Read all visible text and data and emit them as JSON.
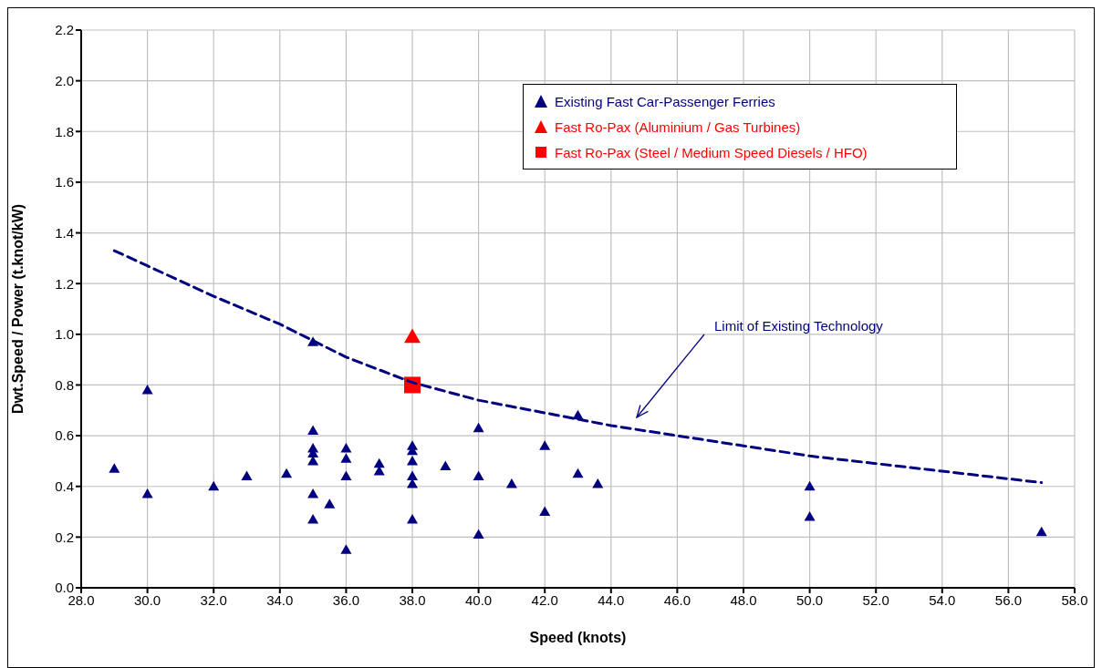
{
  "chart_data": {
    "type": "scatter",
    "xlabel": "Speed (knots)",
    "ylabel": "Dwt.Speed / Power (t.knot/kW)",
    "xlim": [
      28,
      58
    ],
    "xticks": [
      {
        "value": 28,
        "label": "28.0"
      },
      {
        "value": 30,
        "label": "30.0"
      },
      {
        "value": 32,
        "label": "32.0"
      },
      {
        "value": 34,
        "label": "34.0"
      },
      {
        "value": 36,
        "label": "36.0"
      },
      {
        "value": 38,
        "label": "38.0"
      },
      {
        "value": 40,
        "label": "40.0"
      },
      {
        "value": 42,
        "label": "42.0"
      },
      {
        "value": 44,
        "label": "44.0"
      },
      {
        "value": 46,
        "label": "46.0"
      },
      {
        "value": 48,
        "label": "48.0"
      },
      {
        "value": 50,
        "label": "50.0"
      },
      {
        "value": 52,
        "label": "52.0"
      },
      {
        "value": 54,
        "label": "54.0"
      },
      {
        "value": 56,
        "label": "56.0"
      },
      {
        "value": 58,
        "label": "58.0"
      }
    ],
    "ylim": [
      0,
      2.2
    ],
    "yticks": [
      {
        "value": 0,
        "label": "0.0"
      },
      {
        "value": 0.2,
        "label": "0.2"
      },
      {
        "value": 0.4,
        "label": "0.4"
      },
      {
        "value": 0.6,
        "label": "0.6"
      },
      {
        "value": 0.8,
        "label": "0.8"
      },
      {
        "value": 1.0,
        "label": "1.0"
      },
      {
        "value": 1.2,
        "label": "1.2"
      },
      {
        "value": 1.4,
        "label": "1.4"
      },
      {
        "value": 1.6,
        "label": "1.6"
      },
      {
        "value": 1.8,
        "label": "1.8"
      },
      {
        "value": 2.0,
        "label": "2.0"
      },
      {
        "value": 2.2,
        "label": "2.2"
      }
    ],
    "grid": true,
    "legend": "top right",
    "series": [
      {
        "name": "Existing Fast Car-Passenger Ferries",
        "color": "#000080",
        "marker": "triangle",
        "x": [
          29,
          30,
          30,
          32,
          33,
          34.2,
          35,
          35,
          35,
          35,
          35,
          35,
          35,
          35.5,
          36,
          36,
          36,
          36,
          37,
          37,
          38,
          38,
          38,
          38,
          38,
          38,
          39,
          40,
          40,
          40,
          41,
          42,
          42,
          43,
          43,
          43.6,
          50,
          50,
          57
        ],
        "values": [
          0.47,
          0.78,
          0.37,
          0.4,
          0.44,
          0.45,
          0.97,
          0.62,
          0.55,
          0.53,
          0.5,
          0.37,
          0.27,
          0.33,
          0.55,
          0.51,
          0.44,
          0.15,
          0.49,
          0.46,
          0.56,
          0.54,
          0.5,
          0.44,
          0.41,
          0.27,
          0.48,
          0.63,
          0.44,
          0.21,
          0.41,
          0.56,
          0.3,
          0.68,
          0.45,
          0.41,
          0.4,
          0.28,
          0.22
        ]
      },
      {
        "name": "Fast Ro-Pax (Aluminium / Gas Turbines)",
        "color": "#ff0000",
        "marker": "triangle",
        "x": [
          38
        ],
        "values": [
          0.99
        ]
      },
      {
        "name": "Fast Ro-Pax (Steel / Medium Speed Diesels / HFO)",
        "color": "#ff0000",
        "marker": "square",
        "x": [
          38
        ],
        "values": [
          0.8
        ]
      },
      {
        "type": "line",
        "color": "#000080",
        "marker": "none",
        "line_style": "dashed",
        "x": [
          29,
          30,
          32,
          34,
          36,
          38,
          40,
          42,
          44,
          46,
          48,
          50,
          52,
          54,
          56,
          57
        ],
        "values": [
          1.33,
          1.27,
          1.15,
          1.04,
          0.91,
          0.81,
          0.74,
          0.69,
          0.64,
          0.6,
          0.56,
          0.52,
          0.49,
          0.46,
          0.43,
          0.415
        ]
      }
    ],
    "annotations": [
      "Limit of Existing Technology"
    ]
  }
}
